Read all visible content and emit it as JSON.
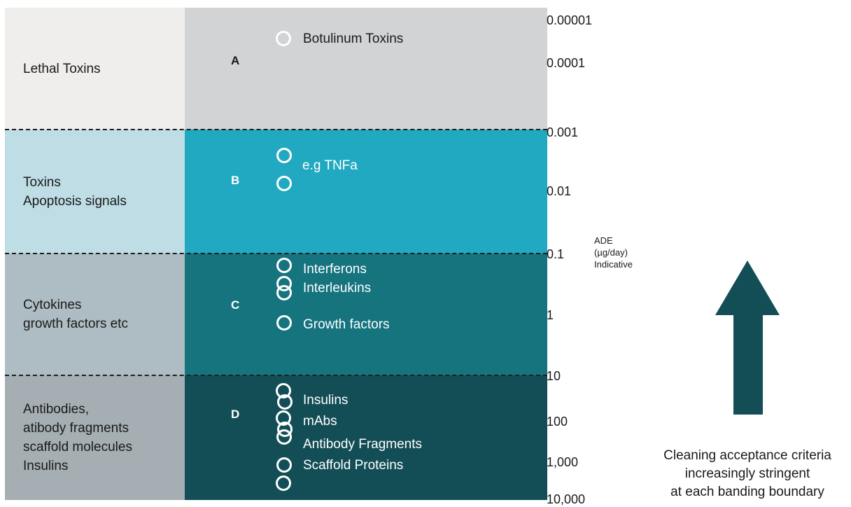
{
  "bands": [
    {
      "letter": "A",
      "category_lines": [
        "Lethal Toxins"
      ],
      "left_color": "#f0eeec",
      "right_color": "#d1d3d4"
    },
    {
      "letter": "B",
      "category_lines": [
        "Toxins",
        "Apoptosis signals"
      ],
      "left_color": "#bedde5",
      "right_color": "#22a9c2"
    },
    {
      "letter": "C",
      "category_lines": [
        "Cytokines",
        "growth factors etc"
      ],
      "left_color": "#aebdc3",
      "right_color": "#16747f"
    },
    {
      "letter": "D",
      "category_lines": [
        "Antibodies,",
        "atibody fragments",
        "scaffold molecules",
        "Insulins"
      ],
      "left_color": "#a5aeb2",
      "right_color": "#134e56"
    }
  ],
  "molecules": {
    "a_botulinum": "Botulinum Toxins",
    "b_tnfa": "e.g TNFa",
    "c_interferons": "Interferons",
    "c_interleukins": "Interleukins",
    "c_growth": "Growth factors",
    "d_insulins": "Insulins",
    "d_mabs": "mAbs",
    "d_fragments": "Antibody Fragments",
    "d_scaffold": "Scaffold Proteins"
  },
  "axis": {
    "ticks": [
      "0.00001",
      "0.0001",
      "0.001",
      "0.01",
      "0.1",
      "1",
      "10",
      "100",
      "1,000",
      "10,000"
    ],
    "label_lines": [
      "ADE",
      "(µg/day)",
      "Indicative"
    ]
  },
  "arrow": {
    "color": "#134e56",
    "icon": "up-arrow-icon"
  },
  "caption_lines": [
    "Cleaning acceptance criteria",
    "increasingly stringent",
    "at each banding boundary"
  ]
}
